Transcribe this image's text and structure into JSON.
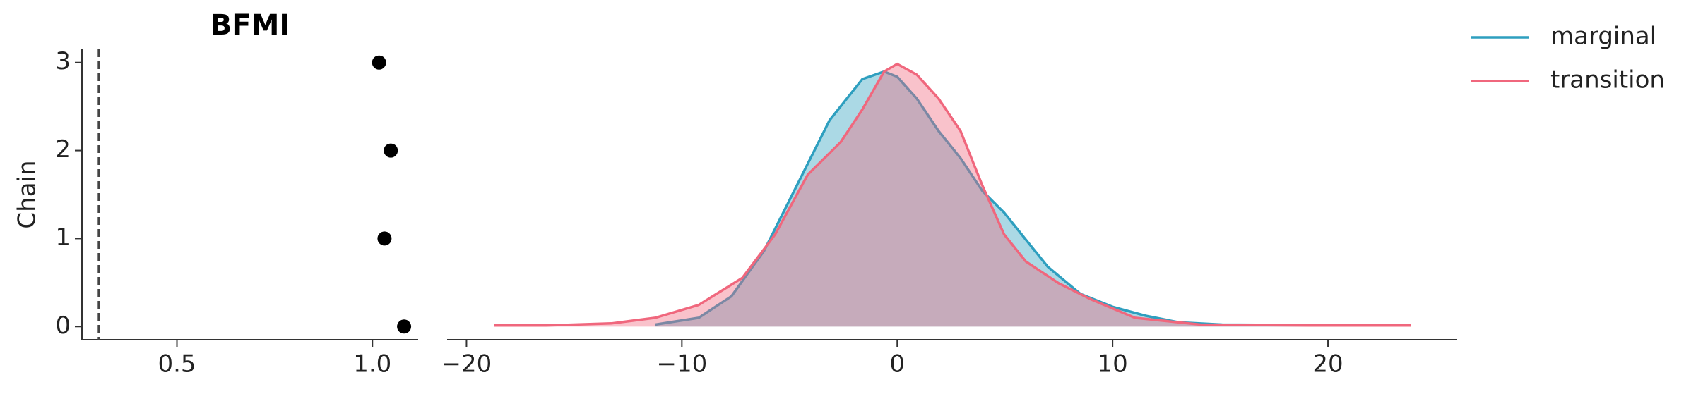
{
  "chart_data": [
    {
      "type": "scatter",
      "title": "BFMI",
      "y_label": "Chain",
      "series": [
        {
          "color": "#000000",
          "x": [
            1.081,
            1.031,
            1.047,
            1.017
          ],
          "values": [
            0,
            1,
            2,
            3
          ]
        }
      ],
      "reference_line": {
        "x": 0.3,
        "color": "#444444",
        "style": "dashed"
      },
      "xlim": [
        0.257,
        1.117
      ],
      "ylim": [
        -0.15,
        3.15
      ],
      "xticks": [
        0.5,
        {
          "value": 1,
          "label": "1.0"
        }
      ],
      "yticks": [
        0,
        1,
        2,
        3
      ]
    },
    {
      "type": "line",
      "fill": true,
      "legend": "upper right outside",
      "xlim": [
        -20.9,
        26
      ],
      "ylim": [
        -0.0045,
        0.095
      ],
      "xticks": [
        {
          "value": -20,
          "label": "−20"
        },
        {
          "value": -10,
          "label": "−10"
        },
        0,
        10,
        20
      ],
      "series": [
        {
          "name": "marginal",
          "color": "#2e9fbf",
          "x": [
            -11.24,
            -9.22,
            -7.7,
            -6.18,
            -4.66,
            -3.14,
            -1.62,
            -0.61,
            0,
            0.91,
            1.92,
            2.94,
            3.95,
            4.96,
            5.97,
            6.99,
            8.51,
            10.03,
            11.54,
            13.06,
            15.09,
            21.42
          ],
          "values": [
            0.0007,
            0.003,
            0.0104,
            0.026,
            0.0484,
            0.0707,
            0.0848,
            0.0874,
            0.0856,
            0.0781,
            0.067,
            0.0577,
            0.0465,
            0.0391,
            0.0298,
            0.0205,
            0.0112,
            0.0067,
            0.0037,
            0.0015,
            0.0007,
            0.0004
          ]
        },
        {
          "name": "transition",
          "color": "#f0677d",
          "x": [
            -18.73,
            -16.3,
            -13.27,
            -11.24,
            -9.22,
            -7.19,
            -5.67,
            -4.15,
            -2.63,
            -1.62,
            -0.61,
            0,
            0.91,
            1.92,
            2.94,
            3.95,
            4.96,
            5.97,
            7.49,
            9.01,
            11.04,
            14.08,
            19.14,
            23.85
          ],
          "values": [
            0.0004,
            0.0004,
            0.0011,
            0.003,
            0.0074,
            0.0167,
            0.0316,
            0.0521,
            0.0632,
            0.0744,
            0.0874,
            0.09,
            0.0863,
            0.0781,
            0.067,
            0.0484,
            0.0316,
            0.0223,
            0.0149,
            0.0093,
            0.003,
            0.0007,
            0.0004,
            0.0004
          ]
        }
      ]
    }
  ]
}
